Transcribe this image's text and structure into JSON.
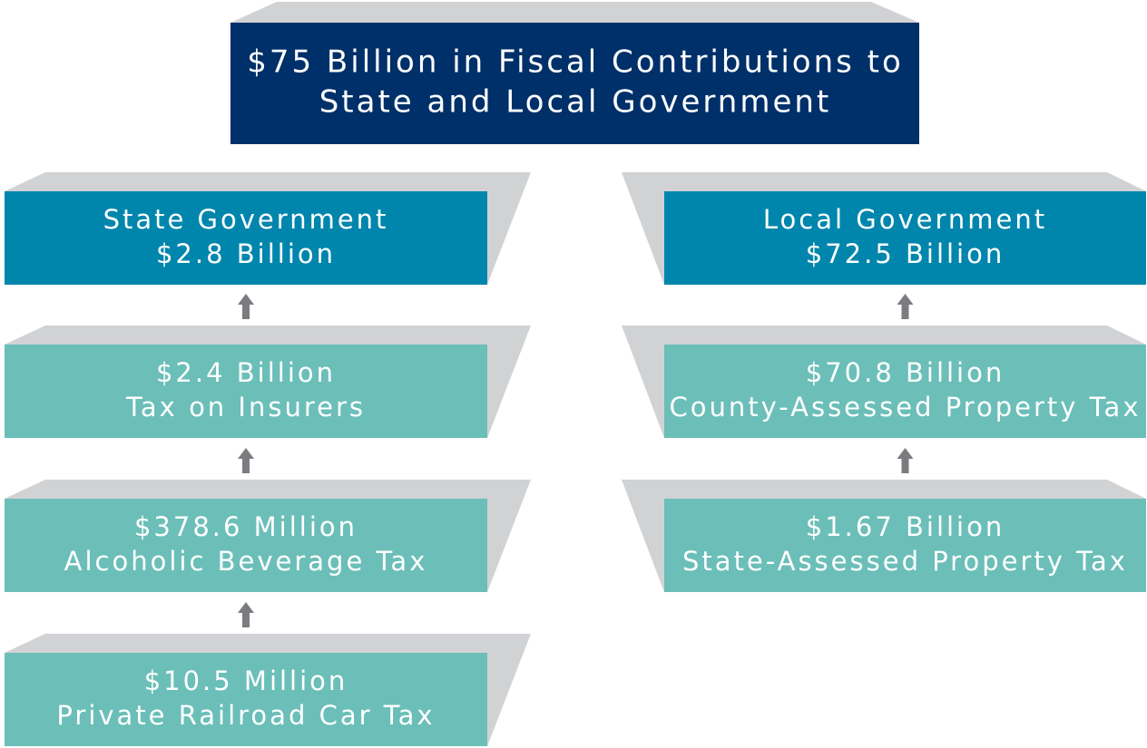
{
  "header": {
    "lines": [
      "$75 Billion in Fiscal Contributions to",
      "State and Local Government"
    ]
  },
  "left": [
    {
      "lines": [
        "State Government",
        "$2.8 Billion"
      ]
    },
    {
      "lines": [
        "$2.4 Billion",
        "Tax on Insurers"
      ]
    },
    {
      "lines": [
        "$378.6 Million",
        "Alcoholic Beverage Tax"
      ]
    },
    {
      "lines": [
        "$10.5 Million",
        "Private Railroad Car Tax"
      ]
    }
  ],
  "right": [
    {
      "lines": [
        "Local Government",
        "$72.5 Billion"
      ]
    },
    {
      "lines": [
        "$70.8 Billion",
        "County-Assessed Property Tax"
      ]
    },
    {
      "lines": [
        "$1.67 Billion",
        "State-Assessed Property Tax"
      ]
    }
  ]
}
